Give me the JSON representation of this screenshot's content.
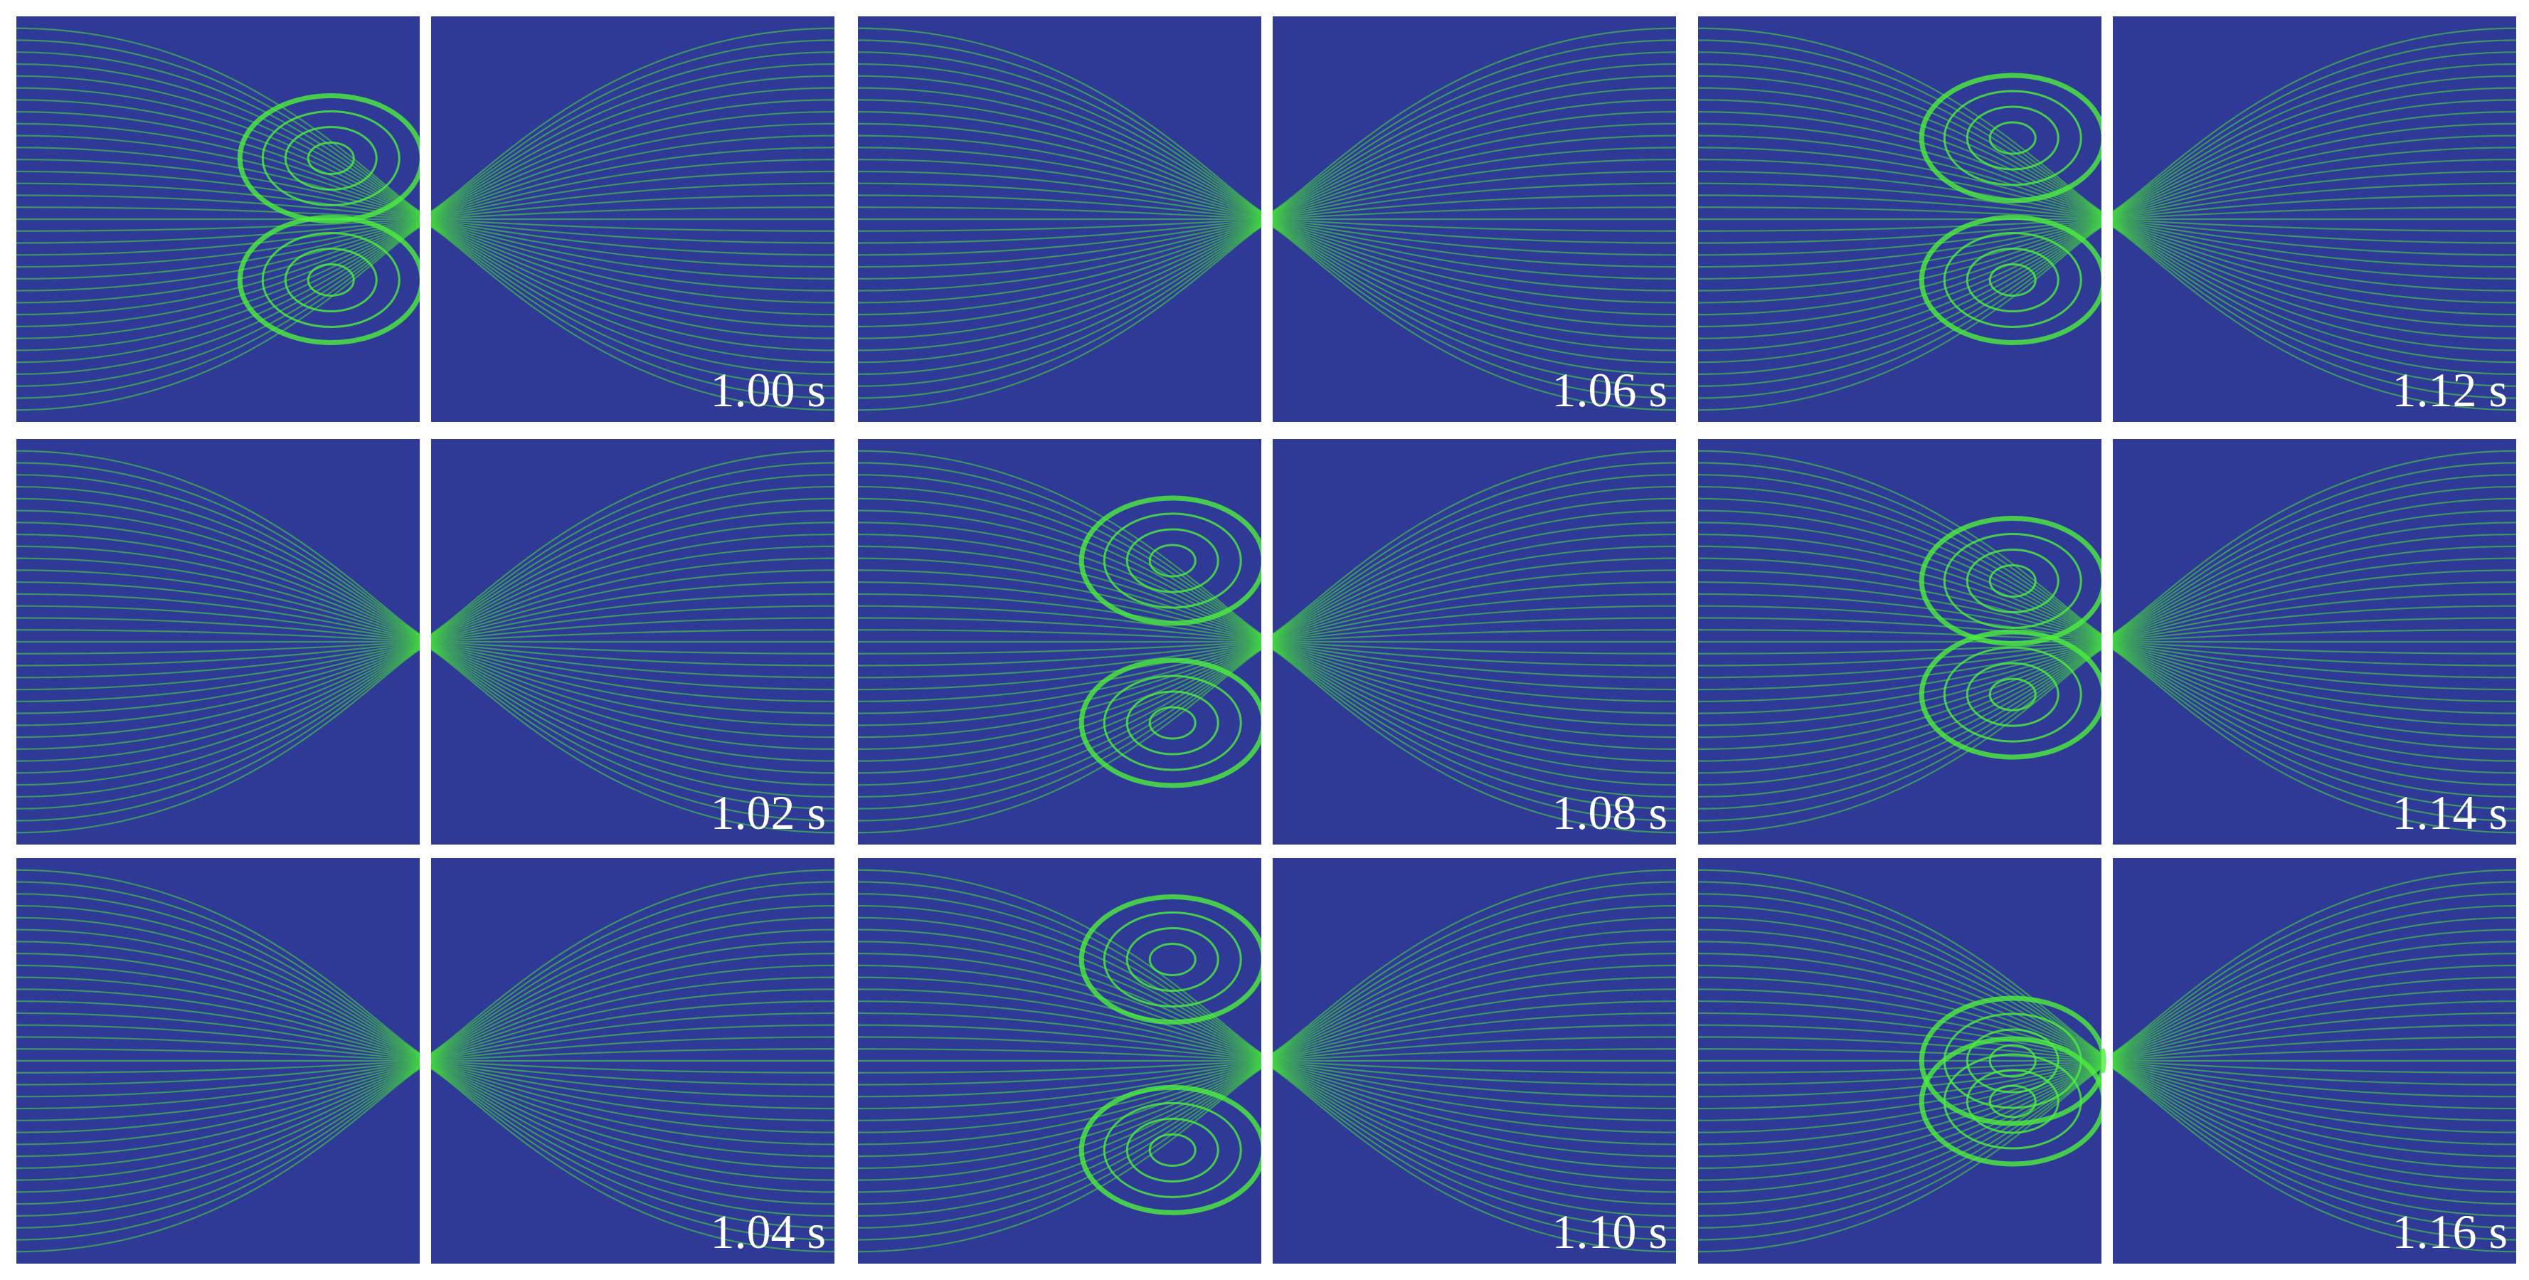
{
  "panels": [
    {
      "label": "1.00 s"
    },
    {
      "label": "1.02 s"
    },
    {
      "label": "1.04 s"
    },
    {
      "label": "1.06 s"
    },
    {
      "label": "1.08 s"
    },
    {
      "label": "1.10 s"
    },
    {
      "label": "1.12 s"
    },
    {
      "label": "1.14 s"
    },
    {
      "label": "1.16 s"
    }
  ]
}
